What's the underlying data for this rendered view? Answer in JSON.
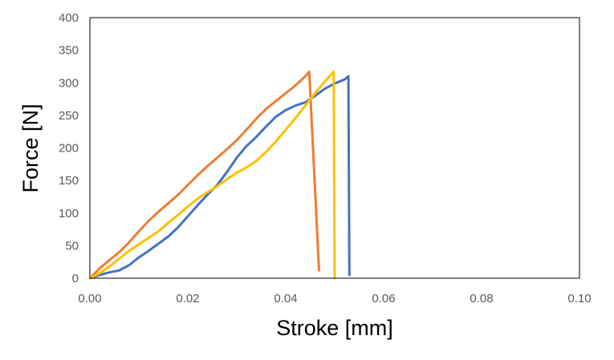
{
  "chart_data": {
    "type": "line",
    "title": "",
    "xlabel": "Stroke [mm]",
    "ylabel": "Force [N]",
    "xlim": [
      0,
      0.1
    ],
    "ylim": [
      0,
      400
    ],
    "x_ticks": [
      "0.00",
      "0.02",
      "0.04",
      "0.06",
      "0.08",
      "0.10"
    ],
    "y_ticks": [
      "0",
      "50",
      "100",
      "150",
      "200",
      "250",
      "300",
      "350",
      "400"
    ],
    "grid": false,
    "legend": "none",
    "series": [
      {
        "color": "#4472C4",
        "points": [
          [
            0.0,
            0
          ],
          [
            0.002,
            5
          ],
          [
            0.004,
            9
          ],
          [
            0.006,
            12
          ],
          [
            0.008,
            20
          ],
          [
            0.01,
            32
          ],
          [
            0.012,
            42
          ],
          [
            0.014,
            53
          ],
          [
            0.016,
            64
          ],
          [
            0.018,
            78
          ],
          [
            0.02,
            95
          ],
          [
            0.022,
            112
          ],
          [
            0.024,
            128
          ],
          [
            0.026,
            143
          ],
          [
            0.028,
            163
          ],
          [
            0.03,
            185
          ],
          [
            0.032,
            203
          ],
          [
            0.034,
            217
          ],
          [
            0.036,
            233
          ],
          [
            0.038,
            248
          ],
          [
            0.04,
            258
          ],
          [
            0.042,
            265
          ],
          [
            0.044,
            270
          ],
          [
            0.046,
            280
          ],
          [
            0.048,
            291
          ],
          [
            0.05,
            299
          ],
          [
            0.052,
            305
          ],
          [
            0.0528,
            310
          ],
          [
            0.053,
            5
          ]
        ]
      },
      {
        "color": "#ED7D31",
        "points": [
          [
            0.0,
            0
          ],
          [
            0.002,
            15
          ],
          [
            0.004,
            28
          ],
          [
            0.006,
            40
          ],
          [
            0.008,
            55
          ],
          [
            0.01,
            72
          ],
          [
            0.012,
            88
          ],
          [
            0.014,
            102
          ],
          [
            0.016,
            115
          ],
          [
            0.018,
            128
          ],
          [
            0.02,
            143
          ],
          [
            0.022,
            158
          ],
          [
            0.024,
            172
          ],
          [
            0.026,
            185
          ],
          [
            0.028,
            198
          ],
          [
            0.03,
            212
          ],
          [
            0.032,
            228
          ],
          [
            0.034,
            245
          ],
          [
            0.036,
            260
          ],
          [
            0.038,
            272
          ],
          [
            0.04,
            284
          ],
          [
            0.042,
            296
          ],
          [
            0.044,
            310
          ],
          [
            0.0448,
            317
          ],
          [
            0.0468,
            12
          ]
        ]
      },
      {
        "color": "#FFC000",
        "points": [
          [
            0.0,
            0
          ],
          [
            0.002,
            8
          ],
          [
            0.004,
            18
          ],
          [
            0.006,
            30
          ],
          [
            0.008,
            42
          ],
          [
            0.01,
            52
          ],
          [
            0.012,
            62
          ],
          [
            0.014,
            72
          ],
          [
            0.016,
            85
          ],
          [
            0.018,
            97
          ],
          [
            0.02,
            110
          ],
          [
            0.022,
            122
          ],
          [
            0.024,
            132
          ],
          [
            0.026,
            141
          ],
          [
            0.028,
            152
          ],
          [
            0.03,
            162
          ],
          [
            0.032,
            170
          ],
          [
            0.034,
            180
          ],
          [
            0.036,
            194
          ],
          [
            0.038,
            210
          ],
          [
            0.04,
            228
          ],
          [
            0.042,
            246
          ],
          [
            0.044,
            265
          ],
          [
            0.046,
            284
          ],
          [
            0.048,
            302
          ],
          [
            0.0498,
            317
          ],
          [
            0.05,
            0
          ]
        ]
      }
    ]
  }
}
